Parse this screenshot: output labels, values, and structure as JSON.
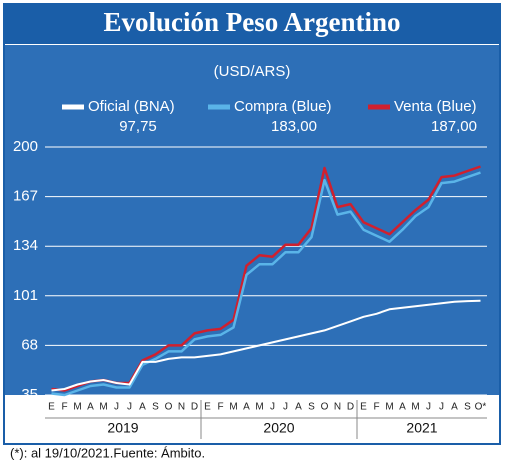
{
  "chart_data": {
    "type": "line",
    "title": "Evolución Peso Argentino",
    "subtitle": "(USD/ARS)",
    "categories": [
      "E",
      "F",
      "M",
      "A",
      "M",
      "J",
      "J",
      "A",
      "S",
      "O",
      "N",
      "D",
      "E",
      "F",
      "M",
      "A",
      "M",
      "J",
      "J",
      "A",
      "S",
      "O",
      "N",
      "D",
      "E",
      "F",
      "M",
      "A",
      "M",
      "J",
      "J",
      "A",
      "S",
      "O*"
    ],
    "years": [
      "2019",
      "2020",
      "2021"
    ],
    "series": [
      {
        "name": "Oficial (BNA)",
        "color": "#ffffff",
        "legend_value": {
          "value": 97.75,
          "label": "97,75"
        },
        "values": [
          38,
          39,
          42,
          44,
          45,
          43,
          42,
          57,
          57,
          59,
          60,
          60,
          61,
          62,
          64,
          66,
          68,
          70,
          72,
          74,
          76,
          78,
          81,
          84,
          87,
          89,
          92,
          93,
          94,
          95,
          96,
          97,
          97.5,
          97.75
        ]
      },
      {
        "name": "Compra (Blue)",
        "color": "#5ab4e8",
        "legend_value": {
          "value": 183,
          "label": "183,00"
        },
        "values": [
          36,
          35,
          38,
          41,
          42,
          40,
          40,
          55,
          59,
          64,
          64,
          72,
          74,
          75,
          80,
          115,
          122,
          122,
          130,
          130,
          140,
          178,
          155,
          157,
          145,
          141,
          137,
          145,
          154,
          160,
          176,
          177,
          180,
          183
        ]
      },
      {
        "name": "Venta (Blue)",
        "color": "#d0202e",
        "legend_value": {
          "value": 187,
          "label": "187,00"
        },
        "values": [
          39,
          38,
          41,
          44,
          45,
          43,
          43,
          58,
          62,
          68,
          68,
          76,
          78,
          79,
          85,
          121,
          128,
          127,
          135,
          135,
          146,
          186,
          160,
          162,
          150,
          146,
          142,
          150,
          158,
          165,
          180,
          181,
          184,
          187
        ]
      }
    ],
    "ylim": [
      35,
      200
    ],
    "yticks": [
      35,
      68,
      101,
      134,
      167,
      200
    ],
    "grid": true,
    "footnote": "(*): al 19/10/2021.Fuente: Ámbito."
  }
}
